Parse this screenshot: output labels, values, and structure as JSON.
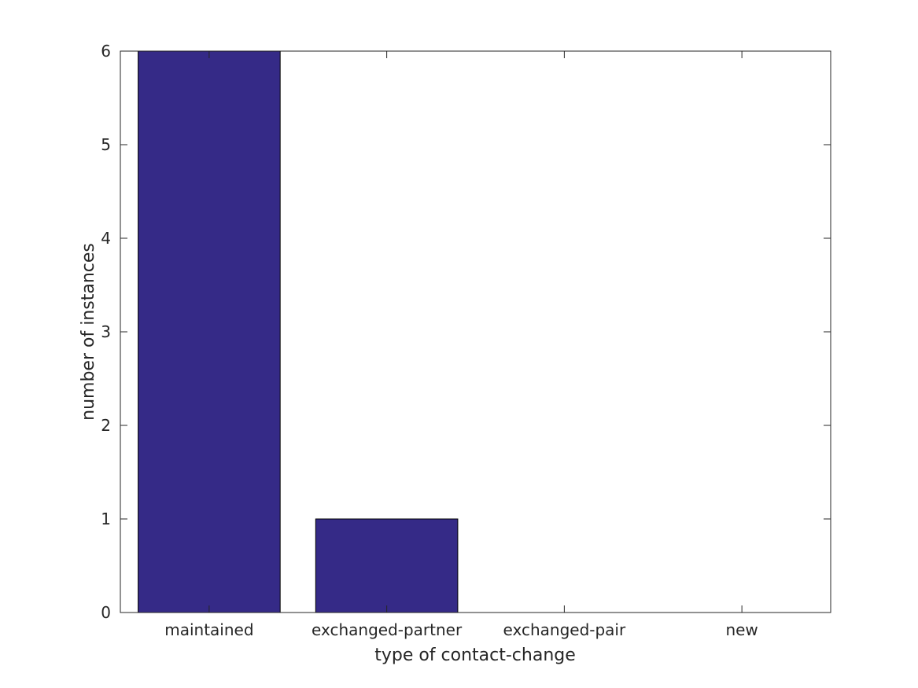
{
  "chart_data": {
    "type": "bar",
    "categories": [
      "maintained",
      "exchanged-partner",
      "exchanged-pair",
      "new"
    ],
    "values": [
      6,
      1,
      0,
      0
    ],
    "title": "",
    "xlabel": "type of contact-change",
    "ylabel": "number of instances",
    "ylim": [
      0,
      6
    ],
    "yticks": [
      "0",
      "1",
      "2",
      "3",
      "4",
      "5",
      "6"
    ],
    "grid": false,
    "legend": "none",
    "colors": {
      "bar_fill": "#352a87",
      "bar_edge": "#000000",
      "axis": "#262626"
    }
  }
}
